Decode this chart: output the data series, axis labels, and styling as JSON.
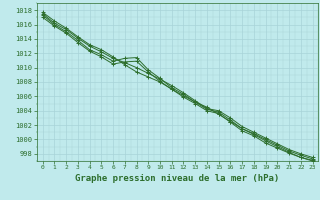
{
  "title": "Graphe pression niveau de la mer (hPa)",
  "xlabel_hours": [
    0,
    1,
    2,
    3,
    4,
    5,
    6,
    7,
    8,
    9,
    10,
    11,
    12,
    13,
    14,
    15,
    16,
    17,
    18,
    19,
    20,
    21,
    22,
    23
  ],
  "ylim": [
    997,
    1019
  ],
  "yticks": [
    998,
    1000,
    1002,
    1004,
    1006,
    1008,
    1010,
    1012,
    1014,
    1016,
    1018
  ],
  "bg_color": "#c0eaec",
  "grid_color": "#a8d4d8",
  "line_color": "#2d6e2d",
  "line1": [
    1017.5,
    1016.2,
    1015.3,
    1014.1,
    1013.0,
    1012.2,
    1011.3,
    1010.7,
    1010.0,
    1009.2,
    1008.4,
    1007.5,
    1006.5,
    1005.4,
    1004.3,
    1004.0,
    1003.0,
    1001.8,
    1001.0,
    1000.2,
    999.4,
    998.6,
    998.0,
    997.5
  ],
  "line2": [
    1017.0,
    1015.8,
    1014.8,
    1013.5,
    1012.3,
    1011.5,
    1010.5,
    1010.8,
    1010.9,
    1009.4,
    1008.1,
    1007.0,
    1005.9,
    1005.0,
    1004.0,
    1003.6,
    1002.4,
    1001.2,
    1000.5,
    999.5,
    998.8,
    998.1,
    997.5,
    997.1
  ],
  "line3": [
    1017.3,
    1016.0,
    1015.0,
    1013.8,
    1012.5,
    1011.8,
    1010.9,
    1011.3,
    1011.4,
    1009.7,
    1008.5,
    1007.2,
    1006.3,
    1005.2,
    1004.2,
    1003.8,
    1002.7,
    1001.5,
    1000.8,
    1000.0,
    999.2,
    998.4,
    997.8,
    997.3
  ],
  "line4": [
    1017.7,
    1016.5,
    1015.5,
    1014.3,
    1013.2,
    1012.5,
    1011.5,
    1010.4,
    1009.4,
    1008.7,
    1008.0,
    1007.0,
    1006.1,
    1005.2,
    1004.5,
    1003.5,
    1002.5,
    1001.5,
    1000.7,
    999.8,
    999.0,
    998.2,
    997.5,
    997.0
  ]
}
